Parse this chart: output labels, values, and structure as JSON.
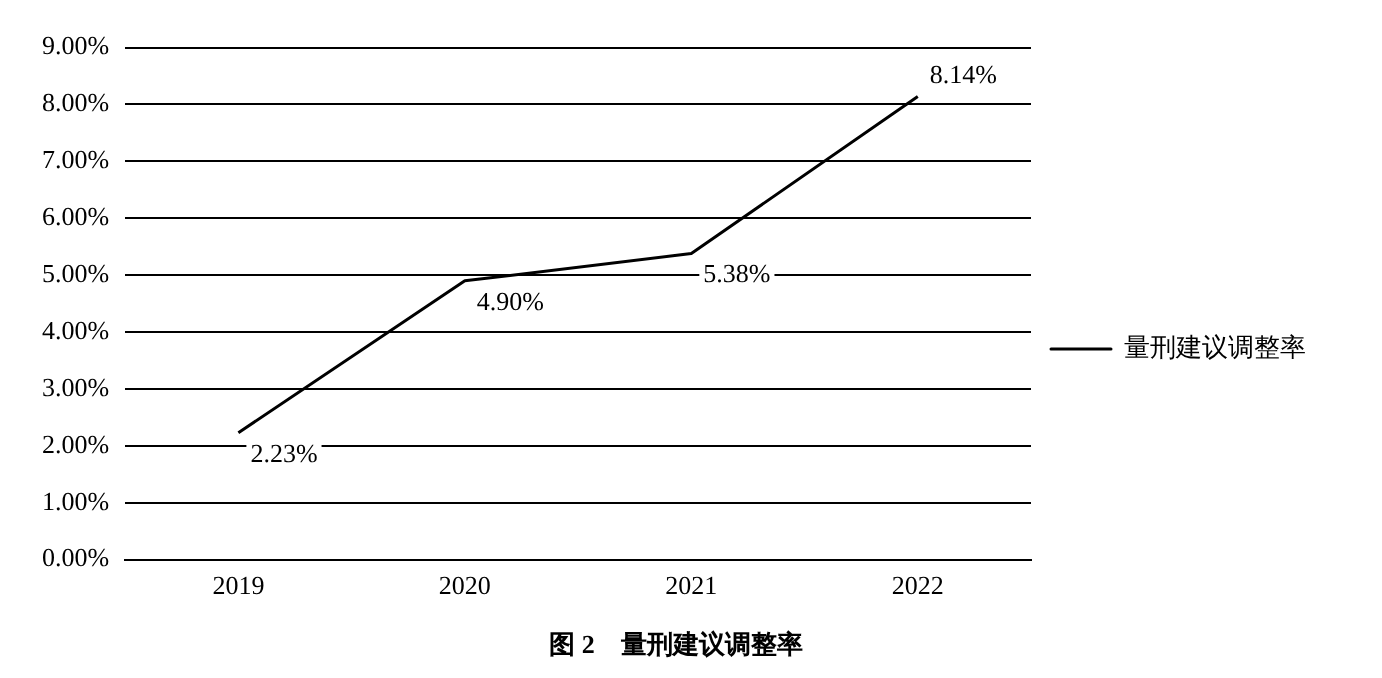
{
  "chart_data": {
    "type": "line",
    "title": "图 2　量刑建议调整率",
    "categories": [
      "2019",
      "2020",
      "2021",
      "2022"
    ],
    "series": [
      {
        "name": "量刑建议调整率",
        "color": "#000000",
        "values": [
          2.23,
          4.9,
          5.38,
          8.14
        ],
        "value_labels": [
          "2.23%",
          "4.90%",
          "5.38%",
          "8.14%"
        ]
      }
    ],
    "ylim": [
      0,
      9
    ],
    "yticks": [
      {
        "value": 0,
        "label": "0.00%"
      },
      {
        "value": 1,
        "label": "1.00%"
      },
      {
        "value": 2,
        "label": "2.00%"
      },
      {
        "value": 3,
        "label": "3.00%"
      },
      {
        "value": 4,
        "label": "4.00%"
      },
      {
        "value": 5,
        "label": "5.00%"
      },
      {
        "value": 6,
        "label": "6.00%"
      },
      {
        "value": 7,
        "label": "7.00%"
      },
      {
        "value": 8,
        "label": "8.00%"
      },
      {
        "value": 9,
        "label": "9.00%"
      }
    ],
    "grid": "y",
    "legend": "right",
    "marker": "none",
    "line_style": "solid"
  }
}
